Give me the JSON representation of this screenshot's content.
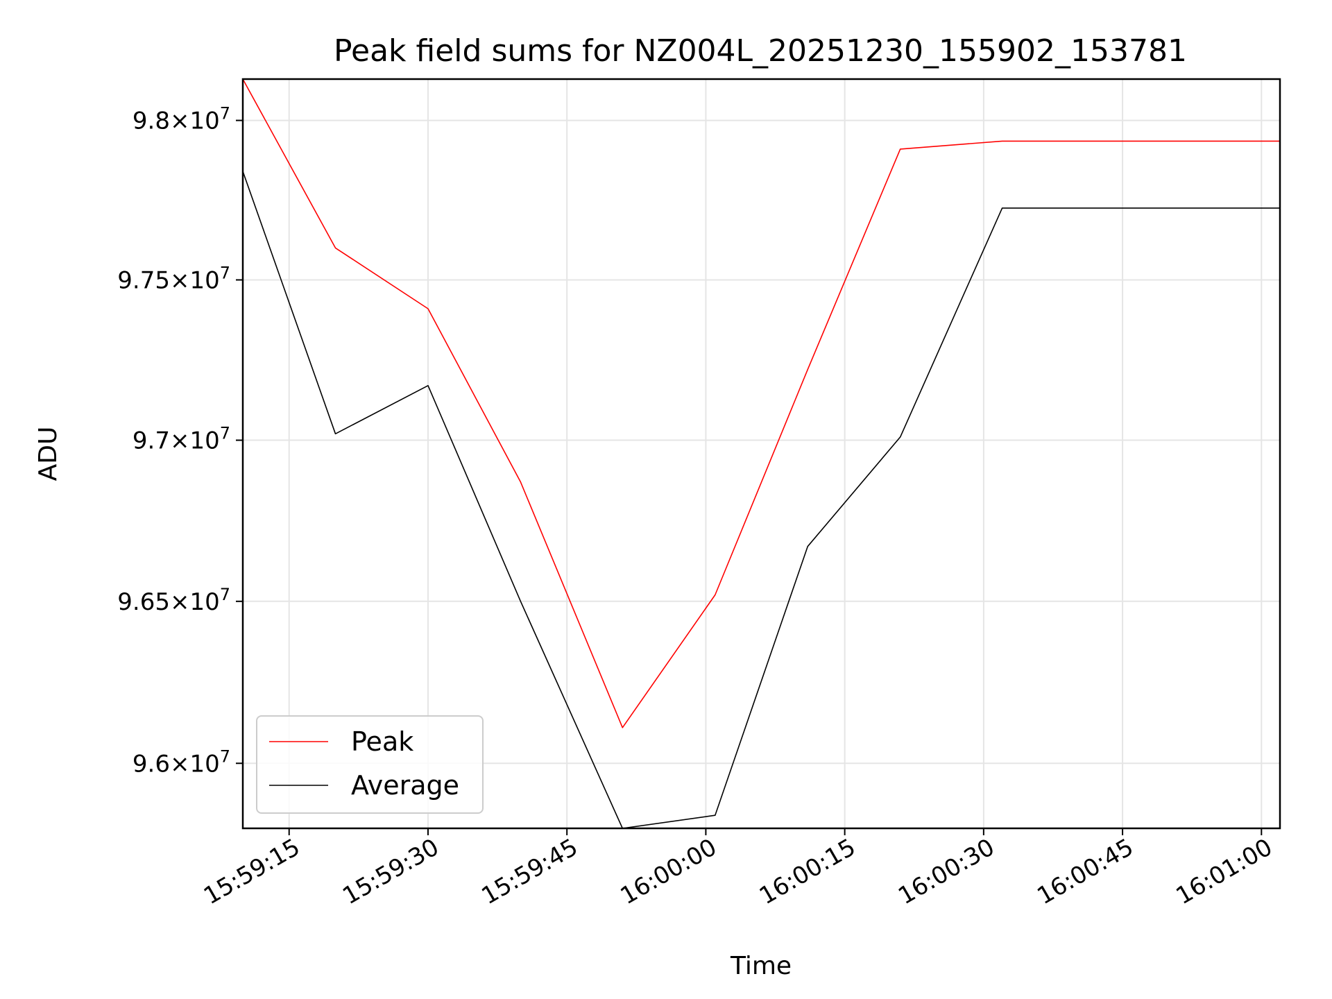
{
  "chart_data": {
    "type": "line",
    "title": "Peak field sums for NZ004L_20251230_155902_153781",
    "xlabel": "Time",
    "ylabel": "ADU",
    "x_axis_type": "time",
    "x": [
      "15:59:10",
      "15:59:20",
      "15:59:30",
      "15:59:40",
      "15:59:51",
      "16:00:01",
      "16:00:11",
      "16:00:21",
      "16:00:32",
      "16:00:42",
      "16:00:52",
      "16:01:02"
    ],
    "xlim": [
      "15:59:10",
      "16:01:02"
    ],
    "xticks": [
      "15:59:15",
      "15:59:30",
      "15:59:45",
      "16:00:00",
      "16:00:15",
      "16:00:30",
      "16:00:45",
      "16:01:00"
    ],
    "ylim": [
      95800000,
      98130000
    ],
    "yscale": "log",
    "yticks": [
      {
        "value": 96000000,
        "mantissa": "9.6",
        "base": "10",
        "exp": "7"
      },
      {
        "value": 96500000,
        "mantissa": "9.65",
        "base": "10",
        "exp": "7"
      },
      {
        "value": 97000000,
        "mantissa": "9.7",
        "base": "10",
        "exp": "7"
      },
      {
        "value": 97500000,
        "mantissa": "9.75",
        "base": "10",
        "exp": "7"
      },
      {
        "value": 98000000,
        "mantissa": "9.8",
        "base": "10",
        "exp": "7"
      }
    ],
    "series": [
      {
        "name": "Peak",
        "color": "#ff0000",
        "values": [
          98130000,
          97600000,
          97410000,
          96870000,
          96110000,
          96520000,
          97220000,
          97910000,
          97935000,
          97935000,
          97935000,
          97935000
        ]
      },
      {
        "name": "Average",
        "color": "#000000",
        "values": [
          97840000,
          97020000,
          97170000,
          96500000,
          95800000,
          95840000,
          96670000,
          97010000,
          97725000,
          97725000,
          97725000,
          97725000
        ]
      }
    ],
    "grid": true,
    "legend_position": "lower left"
  }
}
